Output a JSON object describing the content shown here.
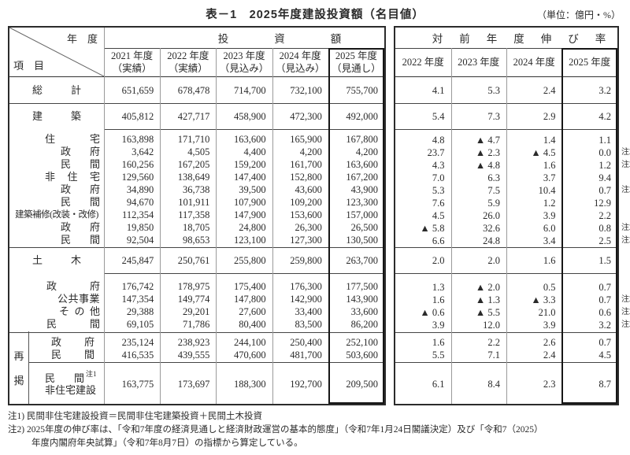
{
  "title": "表－1　2025年度建設投資額（名目値）",
  "unit_note": "（単位：億円・%）",
  "corner": {
    "top": "年　度",
    "bottom": "項　目"
  },
  "left_table": {
    "group_header": "投資額",
    "col_headers": [
      {
        "year": "2021 年度",
        "status": "（実績）"
      },
      {
        "year": "2022 年度",
        "status": "（実績）"
      },
      {
        "year": "2023 年度",
        "status": "（見込み）"
      },
      {
        "year": "2024 年度",
        "status": "（見込み）"
      },
      {
        "year": "2025 年度",
        "status": "（見通し）"
      }
    ]
  },
  "right_table": {
    "group_header": "対前年度伸び率",
    "col_headers": [
      "2022 年度",
      "2023 年度",
      "2024 年度",
      "2025 年度"
    ]
  },
  "regroup_label": "再掲",
  "sections": [
    {
      "kind": "tall",
      "ldiv": "none",
      "rows": [
        {
          "label": "総計",
          "lcls": "main",
          "v": [
            "651,659",
            "678,478",
            "714,700",
            "732,100",
            "755,700"
          ],
          "r": [
            "4.1",
            "5.3",
            "2.4",
            "3.2"
          ],
          "note": ""
        }
      ]
    },
    {
      "kind": "tall",
      "ldiv": "full",
      "rows": [
        {
          "label": "建築",
          "lcls": "main",
          "v": [
            "405,812",
            "427,717",
            "458,900",
            "472,300",
            "492,000"
          ],
          "r": [
            "5.4",
            "7.3",
            "2.9",
            "4.2"
          ],
          "note": ""
        }
      ]
    },
    {
      "kind": "detail9",
      "ldiv": "data",
      "rows": [
        {
          "label": "住宅",
          "lcls": "j70",
          "v": [
            "163,898",
            "171,710",
            "163,600",
            "165,900",
            "167,800"
          ],
          "r": [
            "4.8",
            "▲ 4.7",
            "1.4",
            "1.1"
          ],
          "note": ""
        },
        {
          "label": "政府",
          "lcls": "j50",
          "v": [
            "3,642",
            "4,505",
            "4,400",
            "4,200",
            "4,200"
          ],
          "r": [
            "23.7",
            "▲ 2.3",
            "▲ 4.5",
            "0.0"
          ],
          "note": "注2"
        },
        {
          "label": "民間",
          "lcls": "j50",
          "v": [
            "160,256",
            "167,205",
            "159,200",
            "161,700",
            "163,600"
          ],
          "r": [
            "4.3",
            "▲ 4.8",
            "1.6",
            "1.2"
          ],
          "note": "注2"
        },
        {
          "label": "非住宅",
          "lcls": "j70",
          "v": [
            "129,560",
            "138,649",
            "147,400",
            "152,800",
            "167,200"
          ],
          "r": [
            "7.0",
            "6.3",
            "3.7",
            "9.4"
          ],
          "note": ""
        },
        {
          "label": "政府",
          "lcls": "j50",
          "v": [
            "34,890",
            "36,738",
            "39,500",
            "43,600",
            "43,900"
          ],
          "r": [
            "5.3",
            "7.5",
            "10.4",
            "0.7"
          ],
          "note": "注2"
        },
        {
          "label": "民間",
          "lcls": "j50",
          "v": [
            "94,670",
            "101,911",
            "107,900",
            "109,200",
            "123,300"
          ],
          "r": [
            "7.6",
            "5.9",
            "1.2",
            "12.9"
          ],
          "note": ""
        },
        {
          "label": "建築補修(改装・改修)",
          "lcls": "wide",
          "v": [
            "112,354",
            "117,358",
            "147,900",
            "153,600",
            "157,000"
          ],
          "r": [
            "4.5",
            "26.0",
            "3.9",
            "2.2"
          ],
          "note": ""
        },
        {
          "label": "政府",
          "lcls": "j50",
          "v": [
            "19,850",
            "18,705",
            "24,800",
            "26,300",
            "26,500"
          ],
          "r": [
            "▲ 5.8",
            "32.6",
            "6.0",
            "0.8"
          ],
          "note": "注2"
        },
        {
          "label": "民間",
          "lcls": "j50",
          "v": [
            "92,504",
            "98,653",
            "123,100",
            "127,300",
            "130,500"
          ],
          "r": [
            "6.6",
            "24.8",
            "3.4",
            "2.5"
          ],
          "note": "注2"
        }
      ]
    },
    {
      "kind": "tall",
      "ldiv": "full",
      "rows": [
        {
          "label": "土木",
          "lcls": "main",
          "v": [
            "245,847",
            "250,761",
            "255,800",
            "259,800",
            "263,700"
          ],
          "r": [
            "2.0",
            "2.0",
            "1.6",
            "1.5"
          ],
          "note": ""
        }
      ]
    },
    {
      "kind": "detail4",
      "ldiv": "data",
      "rows": [
        {
          "label": "政府",
          "lcls": "j68",
          "v": [
            "176,742",
            "178,975",
            "175,400",
            "176,300",
            "177,500"
          ],
          "r": [
            "1.3",
            "▲ 2.0",
            "0.5",
            "0.7"
          ],
          "note": ""
        },
        {
          "label": "公共事業",
          "lcls": "plain",
          "v": [
            "147,354",
            "149,774",
            "147,800",
            "142,900",
            "143,900"
          ],
          "r": [
            "1.6",
            "▲ 1.3",
            "▲ 3.3",
            "0.7"
          ],
          "note": "注2"
        },
        {
          "label": "その他",
          "lcls": "j52",
          "v": [
            "29,388",
            "29,201",
            "27,600",
            "33,400",
            "33,600"
          ],
          "r": [
            "▲ 0.6",
            "▲ 5.5",
            "21.0",
            "0.6"
          ],
          "note": "注2"
        },
        {
          "label": "民間",
          "lcls": "j68",
          "v": [
            "69,105",
            "71,786",
            "80,400",
            "83,500",
            "86,200"
          ],
          "r": [
            "3.9",
            "12.0",
            "3.9",
            "3.2"
          ],
          "note": "注2"
        }
      ]
    },
    {
      "kind": "pair",
      "ldiv": "full",
      "regroup": true,
      "rows": [
        {
          "label": "政府",
          "lcls": "j55r",
          "v": [
            "235,124",
            "238,923",
            "244,100",
            "250,400",
            "252,100"
          ],
          "r": [
            "1.6",
            "2.2",
            "2.6",
            "0.7"
          ],
          "note": ""
        },
        {
          "label": "民間",
          "lcls": "j55r",
          "v": [
            "416,535",
            "439,555",
            "470,600",
            "481,700",
            "503,600"
          ],
          "r": [
            "5.5",
            "7.1",
            "2.4",
            "4.5"
          ],
          "note": ""
        }
      ]
    },
    {
      "kind": "tall2",
      "ldiv": "sub",
      "regroup": true,
      "rows": [
        {
          "label": "民間",
          "label2": "非住宅建設",
          "sup": "注1",
          "lcls": "two",
          "v": [
            "163,775",
            "173,697",
            "188,300",
            "192,700",
            "209,500"
          ],
          "r": [
            "6.1",
            "8.4",
            "2.3",
            "8.7"
          ],
          "note": ""
        }
      ]
    }
  ],
  "footnotes": [
    "注1) 民間非住宅建設投資＝民間非住宅建築投資＋民間土木投資",
    "注2) 2025年度の伸び率は、「令和7年度の経済見通しと経済財政運営の基本的態度」（令和7年1月24日閣議決定）及び「令和7（2025）",
    "年度内閣府年央試算」（令和7年8月7日）の指標から算定している。"
  ]
}
